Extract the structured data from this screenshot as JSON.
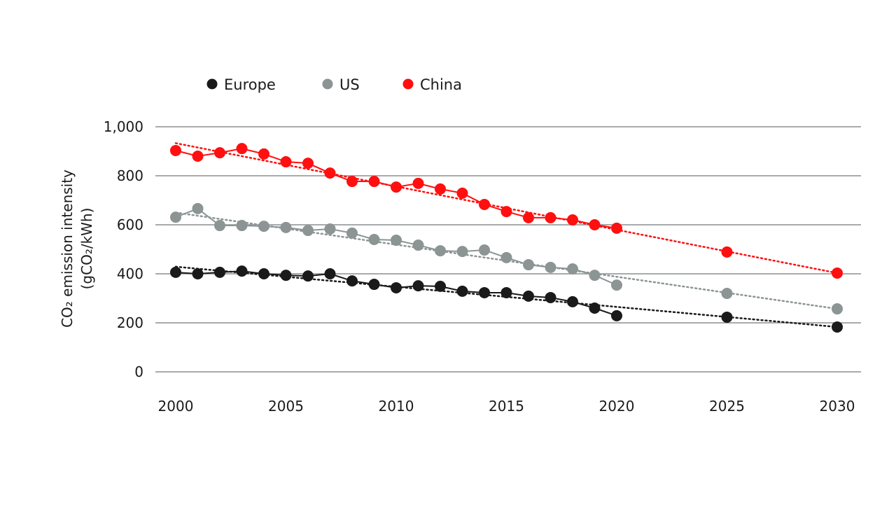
{
  "chart_data": {
    "type": "line",
    "title": "",
    "xlabel": "",
    "ylabel": [
      "CO₂ emission intensity",
      "(gCO₂/kWh)"
    ],
    "ylim": [
      0,
      1000
    ],
    "xlim": [
      2000,
      2030
    ],
    "yticks": [
      0,
      200,
      400,
      600,
      800,
      1000
    ],
    "ytick_labels": [
      "0",
      "200",
      "400",
      "600",
      "800",
      "1,000"
    ],
    "xticks": [
      2000,
      2005,
      2010,
      2015,
      2020,
      2025,
      2030
    ],
    "xtick_labels": [
      "2000",
      "2005",
      "2010",
      "2015",
      "2020",
      "2025",
      "2030"
    ],
    "grid": "horizontal",
    "legend_position": "top-left",
    "historical_years": [
      2000,
      2001,
      2002,
      2003,
      2004,
      2005,
      2006,
      2007,
      2008,
      2009,
      2010,
      2011,
      2012,
      2013,
      2014,
      2015,
      2016,
      2017,
      2018,
      2019,
      2020
    ],
    "projection_years": [
      2025,
      2030
    ],
    "series": [
      {
        "name": "Europe",
        "color": "#1a1a1a",
        "values": [
          406,
          400,
          406,
          411,
          400,
          394,
          391,
          400,
          371,
          357,
          343,
          351,
          349,
          329,
          323,
          323,
          309,
          303,
          286,
          260,
          229
        ],
        "projection": [
          223,
          183
        ],
        "trend": [
          429,
          183
        ]
      },
      {
        "name": "US",
        "color": "#8c9494",
        "values": [
          631,
          666,
          597,
          597,
          594,
          589,
          577,
          583,
          566,
          540,
          537,
          517,
          494,
          491,
          497,
          466,
          437,
          426,
          420,
          394,
          354
        ],
        "projection": [
          320,
          257
        ],
        "trend": [
          650,
          257
        ]
      },
      {
        "name": "China",
        "color": "#ff0f0f",
        "values": [
          903,
          880,
          894,
          911,
          889,
          857,
          851,
          811,
          777,
          777,
          754,
          769,
          746,
          729,
          683,
          654,
          629,
          629,
          620,
          600,
          586
        ],
        "projection": [
          489,
          403
        ],
        "trend": [
          933,
          403
        ]
      }
    ]
  }
}
